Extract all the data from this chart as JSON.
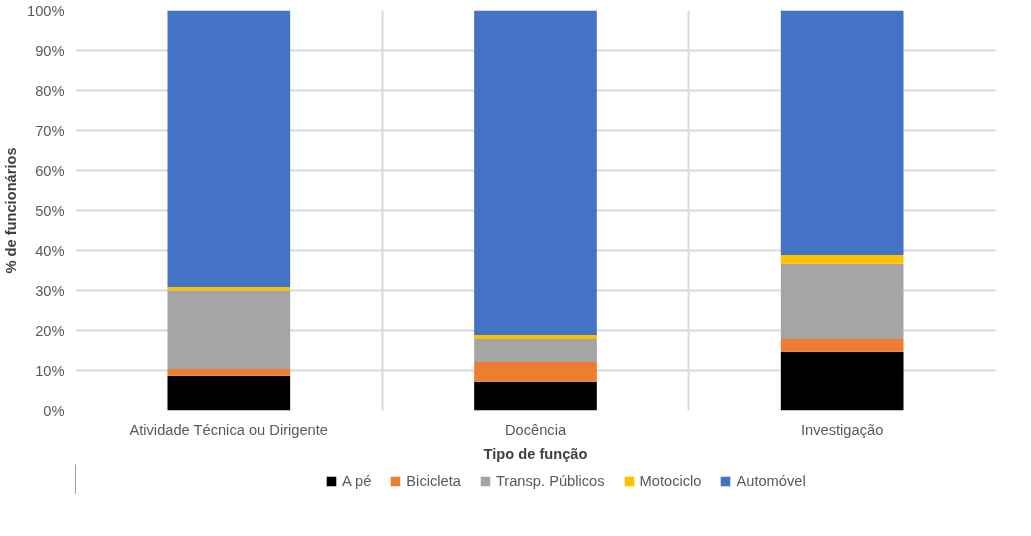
{
  "chart_data": {
    "type": "bar",
    "stacked": true,
    "xlabel": "Tipo de função",
    "ylabel": "% de funcionários",
    "categories": [
      "Atividade Técnica ou Dirigente",
      "Docência",
      "Investigação"
    ],
    "series": [
      {
        "name": "A pé",
        "color": "#000000",
        "values": [
          8.7,
          7.2,
          14.7
        ]
      },
      {
        "name": "Bicicleta",
        "color": "#ed7d31",
        "values": [
          1.7,
          4.9,
          3.2
        ]
      },
      {
        "name": "Transp. Públicos",
        "color": "#a5a5a5",
        "values": [
          19.6,
          5.8,
          18.8
        ]
      },
      {
        "name": "Motociclo",
        "color": "#ffc000",
        "values": [
          0.9,
          1.0,
          2.2
        ]
      },
      {
        "name": "Automóvel",
        "color": "#4472c4",
        "values": [
          69.1,
          81.1,
          61.1
        ]
      }
    ],
    "ylim": [
      0,
      100
    ],
    "yticks": [
      {
        "value": 0,
        "label": "0%"
      },
      {
        "value": 10,
        "label": "10%"
      },
      {
        "value": 20,
        "label": "20%"
      },
      {
        "value": 30,
        "label": "30%"
      },
      {
        "value": 40,
        "label": "40%"
      },
      {
        "value": 50,
        "label": "50%"
      },
      {
        "value": 60,
        "label": "60%"
      },
      {
        "value": 70,
        "label": "70%"
      },
      {
        "value": 80,
        "label": "80%"
      },
      {
        "value": 90,
        "label": "90%"
      },
      {
        "value": 100,
        "label": "100%"
      }
    ],
    "grid": true,
    "legend": "bottom"
  }
}
